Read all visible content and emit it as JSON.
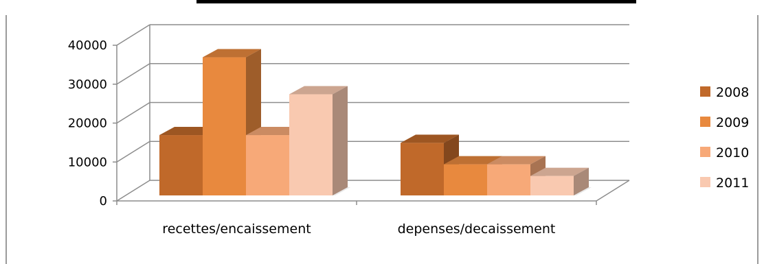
{
  "chart_data": {
    "type": "bar",
    "title": "",
    "xlabel": "",
    "ylabel": "",
    "categories": [
      "recettes/encaissement",
      "depenses/decaissement"
    ],
    "series": [
      {
        "name": "2008",
        "values": [
          15500,
          13500
        ],
        "color": "#C0692A"
      },
      {
        "name": "2009",
        "values": [
          35500,
          8000
        ],
        "color": "#E8893E"
      },
      {
        "name": "2010",
        "values": [
          15500,
          8000
        ],
        "color": "#F7A978"
      },
      {
        "name": "2011",
        "values": [
          26000,
          5000
        ],
        "color": "#F9C9B0"
      }
    ],
    "yticks": [
      "0",
      "10000",
      "20000",
      "30000",
      "40000"
    ],
    "ylim": [
      0,
      40000
    ],
    "grid": true,
    "legend_position": "right",
    "three_d": true
  }
}
